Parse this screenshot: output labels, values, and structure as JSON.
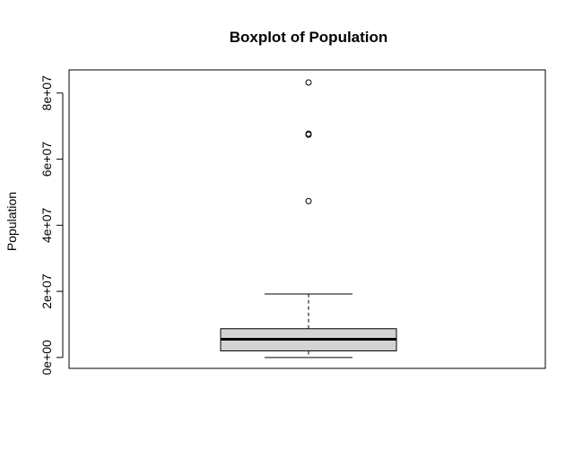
{
  "chart_data": {
    "type": "boxplot",
    "title": "Boxplot of Population",
    "xlabel": "",
    "ylabel": "Population",
    "ylim": [
      -3300000,
      87000000
    ],
    "y_ticks": [
      0,
      20000000,
      40000000,
      60000000,
      80000000
    ],
    "y_tick_labels": [
      "0e+00",
      "2e+07",
      "4e+07",
      "6e+07",
      "8e+07"
    ],
    "grid": false,
    "legend": "none",
    "box": {
      "whisker_low": 0,
      "q1": 2000000,
      "median": 5500000,
      "q3": 8700000,
      "whisker_high": 19200000,
      "outliers": [
        47300000,
        67400000,
        67700000,
        83200000
      ]
    },
    "colors": {
      "box_fill": "#d3d3d3",
      "stroke": "#000000"
    }
  }
}
